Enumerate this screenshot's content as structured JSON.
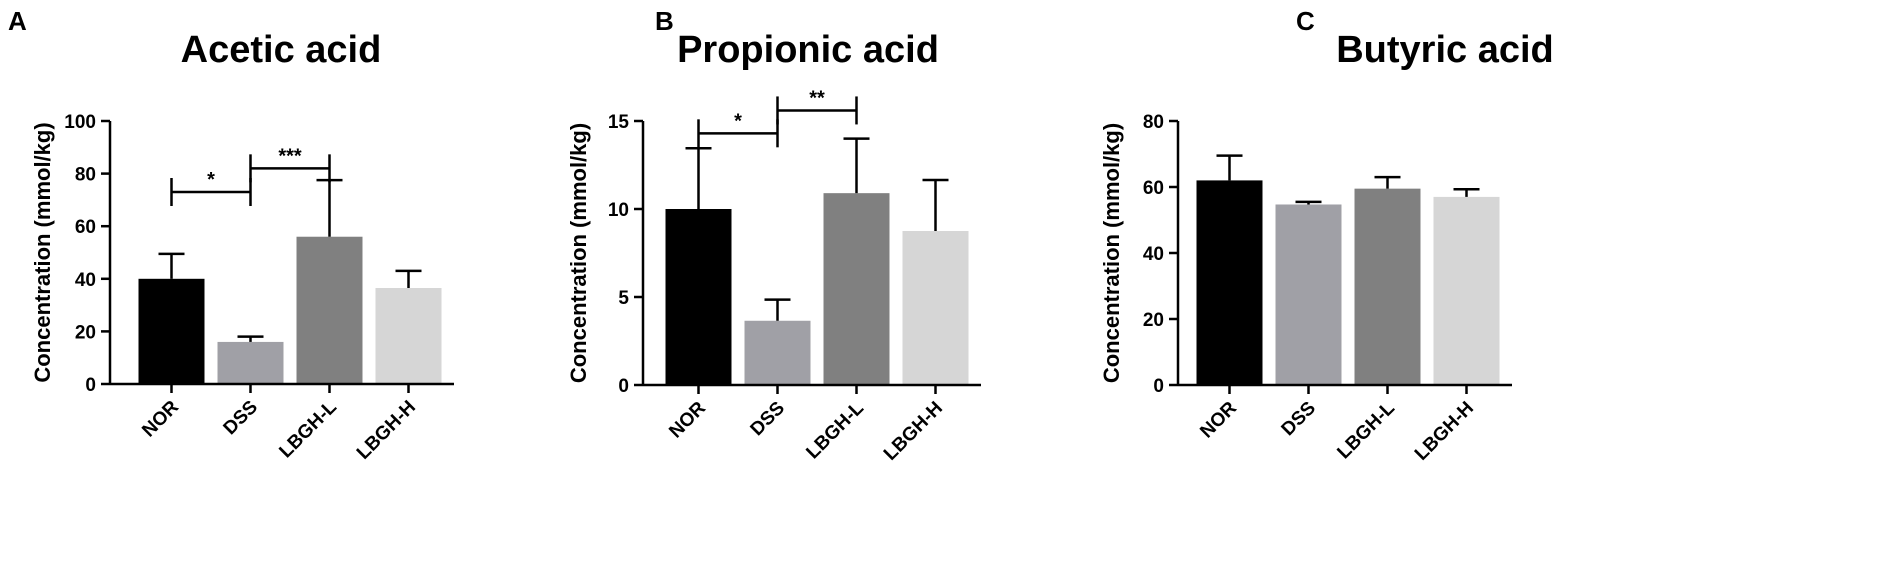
{
  "colors": {
    "NOR": "#000000",
    "DSS": "#a0a0a6",
    "LBGH-L": "#808080",
    "LBGH-H": "#d6d6d6",
    "axis": "#000000"
  },
  "chart_data": [
    {
      "panel": "A",
      "type": "bar",
      "title": "Acetic acid",
      "xlabel": "",
      "ylabel": "Concentration (mmol/kg)",
      "ylim": [
        0,
        100
      ],
      "yticks": [
        0,
        20,
        40,
        60,
        80,
        100
      ],
      "categories": [
        "NOR",
        "DSS",
        "LBGH-L",
        "LBGH-H"
      ],
      "values": [
        40,
        16,
        56,
        36.5
      ],
      "errors": [
        9.5,
        2,
        21.5,
        6.5
      ],
      "significance": [
        {
          "from": 0,
          "to": 1,
          "y": 73,
          "label": "*"
        },
        {
          "from": 1,
          "to": 2,
          "y": 82,
          "label": "***"
        }
      ]
    },
    {
      "panel": "B",
      "type": "bar",
      "title": "Propionic acid",
      "xlabel": "",
      "ylabel": "Concentration (mmol/kg)",
      "ylim": [
        0,
        15
      ],
      "yticks": [
        0,
        5,
        10,
        15
      ],
      "categories": [
        "NOR",
        "DSS",
        "LBGH-L",
        "LBGH-H"
      ],
      "values": [
        10,
        3.65,
        10.9,
        8.75
      ],
      "errors": [
        3.45,
        1.2,
        3.1,
        2.9
      ],
      "significance": [
        {
          "from": 0,
          "to": 1,
          "y": 14.3,
          "label": "*"
        },
        {
          "from": 1,
          "to": 2,
          "y": 15.6,
          "label": "**"
        }
      ]
    },
    {
      "panel": "C",
      "type": "bar",
      "title": "Butyric acid",
      "xlabel": "",
      "ylabel": "Concentration (mmol/kg)",
      "ylim": [
        0,
        80
      ],
      "yticks": [
        0,
        20,
        40,
        60,
        80
      ],
      "categories": [
        "NOR",
        "DSS",
        "LBGH-L",
        "LBGH-H"
      ],
      "values": [
        62,
        54.7,
        59.5,
        57
      ],
      "errors": [
        7.5,
        0.8,
        3.5,
        2.3
      ],
      "significance": []
    }
  ]
}
